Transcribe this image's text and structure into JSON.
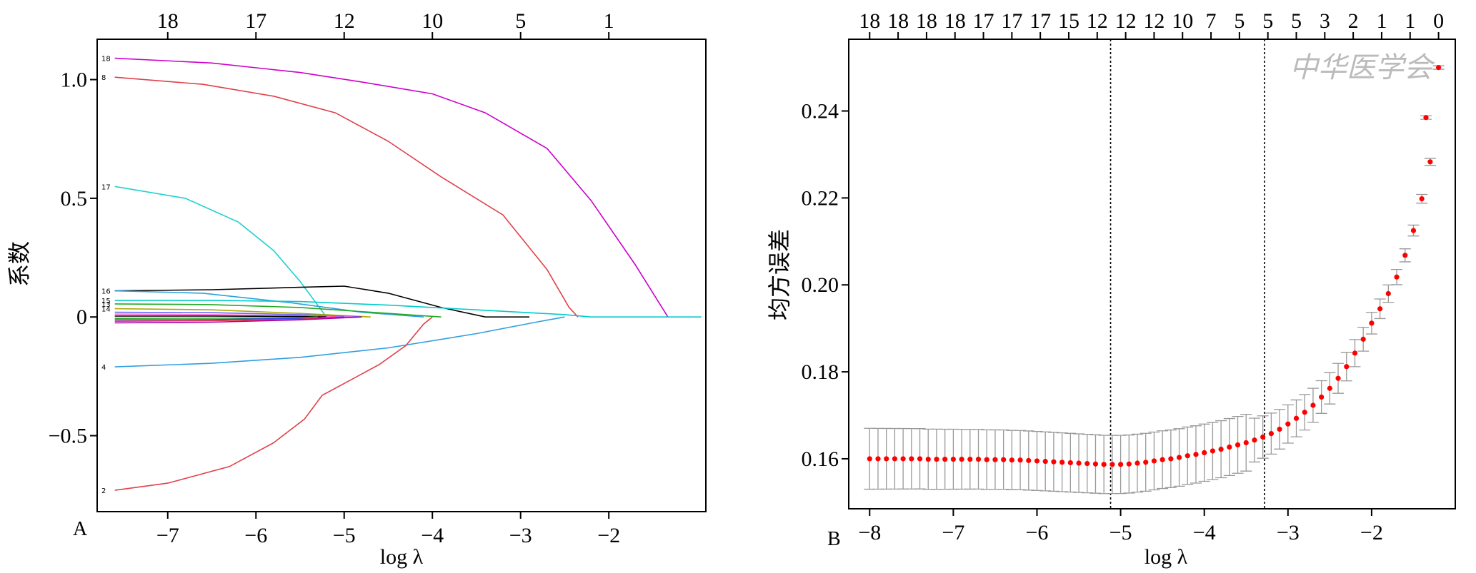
{
  "chart_data": [
    {
      "panel": "A",
      "type": "line",
      "xlabel": "log λ",
      "ylabel": "系数",
      "xlim": [
        -7.8,
        -0.9
      ],
      "ylim": [
        -0.82,
        1.17
      ],
      "x_ticks": [
        -7,
        -6,
        -5,
        -4,
        -3,
        -2
      ],
      "x_tick_labels": [
        "−7",
        "−6",
        "−5",
        "−4",
        "−3",
        "−2"
      ],
      "y_ticks": [
        -0.5,
        0,
        0.5,
        1.0
      ],
      "y_tick_labels": [
        "−0.5",
        "0",
        "0.5",
        "1.0"
      ],
      "top_ticks": [
        -7,
        -6,
        -5,
        -4,
        -3,
        -2
      ],
      "top_labels": [
        "18",
        "17",
        "12",
        "10",
        "5",
        "1"
      ],
      "grid": false,
      "series": [
        {
          "name": "18",
          "color": "#cc00cc",
          "x": [
            -7.6,
            -6.5,
            -5.5,
            -4.8,
            -4.0,
            -3.4,
            -2.7,
            -2.2,
            -1.7,
            -1.33
          ],
          "y": [
            1.09,
            1.07,
            1.03,
            0.99,
            0.94,
            0.86,
            0.71,
            0.49,
            0.22,
            0.0
          ]
        },
        {
          "name": "8",
          "color": "#e0404a",
          "x": [
            -7.6,
            -6.6,
            -5.8,
            -5.1,
            -4.5,
            -3.9,
            -3.2,
            -2.7,
            -2.45,
            -2.35
          ],
          "y": [
            1.01,
            0.98,
            0.93,
            0.86,
            0.74,
            0.59,
            0.43,
            0.2,
            0.04,
            0.0
          ]
        },
        {
          "name": "17",
          "color": "#20d0d0",
          "x": [
            -7.6,
            -6.8,
            -6.2,
            -5.8,
            -5.5,
            -5.3,
            -5.2
          ],
          "y": [
            0.55,
            0.5,
            0.4,
            0.28,
            0.15,
            0.05,
            0.0
          ]
        },
        {
          "name": "16",
          "color": "#000000",
          "x": [
            -7.6,
            -6.5,
            -5.5,
            -5.0,
            -4.5,
            -3.9,
            -3.4,
            -2.9
          ],
          "y": [
            0.11,
            0.115,
            0.125,
            0.13,
            0.1,
            0.04,
            0.0,
            0.0
          ]
        },
        {
          "name": "",
          "color": "#2f9fe0",
          "x": [
            -7.6,
            -6.6,
            -5.6,
            -4.8,
            -4.1
          ],
          "y": [
            0.11,
            0.1,
            0.06,
            0.02,
            0.0
          ]
        },
        {
          "name": "",
          "color": "#00cccc",
          "x": [
            -7.6,
            -6.5,
            -5.5,
            -4.5,
            -3.5,
            -2.5,
            -2.2,
            -0.95
          ],
          "y": [
            0.07,
            0.07,
            0.065,
            0.05,
            0.03,
            0.01,
            0.0,
            0.0
          ]
        },
        {
          "name": "",
          "color": "#22aa22",
          "x": [
            -7.6,
            -6.5,
            -5.5,
            -4.5,
            -3.9
          ],
          "y": [
            0.055,
            0.052,
            0.04,
            0.015,
            0.0
          ]
        },
        {
          "name": "",
          "color": "#aaaa00",
          "x": [
            -7.6,
            -6.5,
            -5.5,
            -4.7
          ],
          "y": [
            0.035,
            0.03,
            0.015,
            0.0
          ]
        },
        {
          "name": "",
          "color": "#6666ff",
          "x": [
            -7.6,
            -6.5,
            -5.5,
            -4.8
          ],
          "y": [
            0.02,
            0.018,
            0.01,
            0.0
          ]
        },
        {
          "name": "",
          "color": "#ff66cc",
          "x": [
            -7.6,
            -6.5,
            -5.5,
            -4.9
          ],
          "y": [
            0.012,
            0.01,
            0.005,
            0.0
          ]
        },
        {
          "name": "",
          "color": "#000000",
          "x": [
            -7.6,
            -6.5,
            -5.5,
            -5.2
          ],
          "y": [
            0.004,
            0.004,
            0.002,
            0.0
          ]
        },
        {
          "name": "",
          "color": "#22aa22",
          "x": [
            -7.6,
            -6.5,
            -5.5,
            -5.3
          ],
          "y": [
            -0.006,
            -0.005,
            -0.003,
            0.0
          ]
        },
        {
          "name": "",
          "color": "#3344ff",
          "x": [
            -7.6,
            -6.5,
            -5.5,
            -5.0
          ],
          "y": [
            -0.012,
            -0.011,
            -0.006,
            0.0
          ]
        },
        {
          "name": "",
          "color": "#ff3333",
          "x": [
            -7.6,
            -6.5,
            -5.5,
            -5.1
          ],
          "y": [
            -0.018,
            -0.016,
            -0.01,
            0.0
          ]
        },
        {
          "name": "",
          "color": "#aa00aa",
          "x": [
            -7.6,
            -6.5,
            -5.5,
            -4.8
          ],
          "y": [
            -0.025,
            -0.022,
            -0.012,
            0.0
          ]
        },
        {
          "name": "4",
          "color": "#2f9fe0",
          "x": [
            -7.6,
            -6.5,
            -5.5,
            -4.5,
            -3.5,
            -2.8,
            -2.5
          ],
          "y": [
            -0.21,
            -0.195,
            -0.17,
            -0.13,
            -0.07,
            -0.02,
            0.0
          ]
        },
        {
          "name": "2",
          "color": "#e0404a",
          "x": [
            -7.6,
            -7.0,
            -6.3,
            -5.8,
            -5.45,
            -5.25,
            -5.0,
            -4.6,
            -4.3,
            -4.1,
            -4.0
          ],
          "y": [
            -0.73,
            -0.7,
            -0.63,
            -0.53,
            -0.43,
            -0.33,
            -0.28,
            -0.2,
            -0.12,
            -0.03,
            0.0
          ]
        }
      ]
    },
    {
      "panel": "B",
      "type": "scatter",
      "xlabel": "log λ",
      "ylabel": "均方误差",
      "xlim": [
        -8.25,
        -1.0
      ],
      "ylim": [
        0.1485,
        0.2565
      ],
      "x_ticks": [
        -8,
        -7,
        -6,
        -5,
        -4,
        -3,
        -2
      ],
      "x_tick_labels": [
        "−8",
        "−7",
        "−6",
        "−5",
        "−4",
        "−3",
        "−2"
      ],
      "y_ticks": [
        0.16,
        0.18,
        0.2,
        0.22,
        0.24
      ],
      "y_tick_labels": [
        "0.16",
        "0.18",
        "0.20",
        "0.22",
        "0.24"
      ],
      "top_labels": [
        "18",
        "18",
        "18",
        "18",
        "17",
        "17",
        "17",
        "15",
        "12",
        "12",
        "12",
        "10",
        "7",
        "5",
        "5",
        "5",
        "3",
        "2",
        "1",
        "1",
        "0"
      ],
      "vlines_x": [
        -5.12,
        -3.28
      ],
      "point_color": "#ff0000",
      "errorbar_color": "#999999",
      "grid": false,
      "x": [
        -8.0,
        -7.9,
        -7.8,
        -7.7,
        -7.6,
        -7.5,
        -7.4,
        -7.3,
        -7.2,
        -7.1,
        -7.0,
        -6.9,
        -6.8,
        -6.7,
        -6.6,
        -6.5,
        -6.4,
        -6.3,
        -6.2,
        -6.1,
        -6.0,
        -5.9,
        -5.8,
        -5.7,
        -5.6,
        -5.5,
        -5.4,
        -5.3,
        -5.2,
        -5.1,
        -5.0,
        -4.9,
        -4.8,
        -4.7,
        -4.6,
        -4.5,
        -4.4,
        -4.3,
        -4.2,
        -4.1,
        -4.0,
        -3.9,
        -3.8,
        -3.7,
        -3.6,
        -3.5,
        -3.4,
        -3.3,
        -3.2,
        -3.1,
        -3.0,
        -2.9,
        -2.8,
        -2.7,
        -2.6,
        -2.5,
        -2.4,
        -2.3,
        -2.2,
        -2.1,
        -2.0,
        -1.9,
        -1.8,
        -1.7,
        -1.6,
        -1.5,
        -1.4,
        -1.3
      ],
      "y": [
        0.16,
        0.16,
        0.16,
        0.16,
        0.16,
        0.16,
        0.16,
        0.1599,
        0.1599,
        0.1599,
        0.1599,
        0.1599,
        0.1599,
        0.1599,
        0.1598,
        0.1598,
        0.1598,
        0.1597,
        0.1597,
        0.1596,
        0.1595,
        0.1594,
        0.1593,
        0.1592,
        0.1591,
        0.159,
        0.1589,
        0.1588,
        0.1587,
        0.1587,
        0.1587,
        0.1588,
        0.159,
        0.1592,
        0.1595,
        0.1598,
        0.16,
        0.1603,
        0.1607,
        0.161,
        0.1614,
        0.1618,
        0.1622,
        0.1627,
        0.1632,
        0.1637,
        0.1643,
        0.165,
        0.1658,
        0.1668,
        0.168,
        0.1693,
        0.1707,
        0.1723,
        0.1742,
        0.1762,
        0.1785,
        0.1812,
        0.1843,
        0.1875,
        0.1912,
        0.1945,
        0.198,
        0.2018,
        0.2068,
        0.2125,
        0.2198,
        0.2283
      ]
    }
  ],
  "panel_a": {
    "letter": "A",
    "line_labels": [
      "18",
      "8",
      "17",
      "16",
      "15",
      "13",
      "14",
      "4",
      "2"
    ]
  },
  "panel_b": {
    "letter": "B",
    "right_points": [
      {
        "x": -1.35,
        "y": 0.2385
      },
      {
        "x": -1.2,
        "y": 0.25
      }
    ]
  },
  "watermark": "中华医学会"
}
